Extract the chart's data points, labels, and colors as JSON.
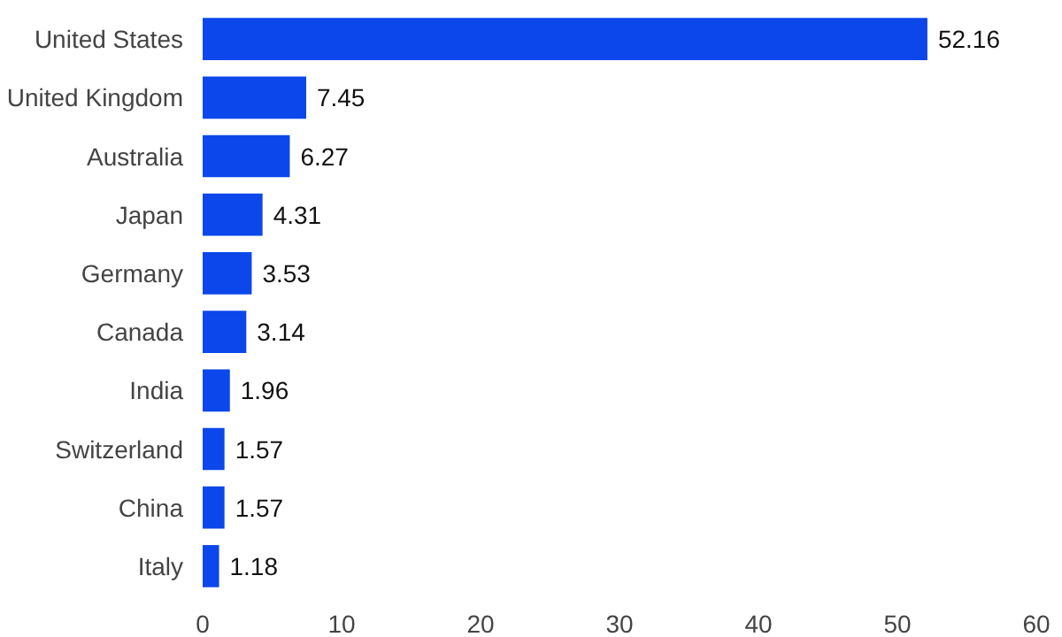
{
  "chart_data": {
    "type": "bar",
    "orientation": "horizontal",
    "categories": [
      "United States",
      "United Kingdom",
      "Australia",
      "Japan",
      "Germany",
      "Canada",
      "India",
      "Switzerland",
      "China",
      "Italy"
    ],
    "values": [
      52.16,
      7.45,
      6.27,
      4.31,
      3.53,
      3.14,
      1.96,
      1.57,
      1.57,
      1.18
    ],
    "color": "#0b47ea",
    "xlim": [
      0,
      60
    ],
    "xticks": [
      0,
      10,
      20,
      30,
      40,
      50,
      60
    ],
    "data_labels": true,
    "grid": false
  }
}
